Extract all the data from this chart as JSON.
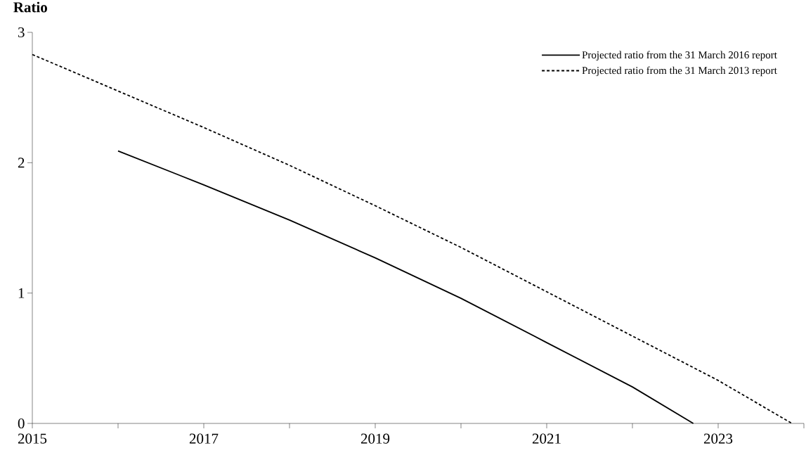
{
  "chart_data": {
    "type": "line",
    "ylabel": "Ratio",
    "xlim": [
      2015,
      2024
    ],
    "ylim": [
      0,
      3
    ],
    "yticks": [
      0,
      1,
      2,
      3
    ],
    "xticks": [
      2015,
      {
        "value": 2016,
        "label": null
      },
      2017,
      {
        "value": 2018,
        "label": null
      },
      2019,
      {
        "value": 2020,
        "label": null
      },
      2021,
      {
        "value": 2022,
        "label": null
      },
      2023,
      {
        "value": 2024,
        "label": null
      }
    ],
    "legend": "top right",
    "series": [
      {
        "name": "Projected ratio from the 31 March 2016 report",
        "color": "#000000",
        "line_style": "solid",
        "x": [
          2016,
          2017,
          2018,
          2019,
          2020,
          2021,
          2022,
          2022.71
        ],
        "values": [
          2.09,
          1.83,
          1.56,
          1.27,
          0.96,
          0.62,
          0.28,
          0
        ]
      },
      {
        "name": "Projected ratio from the 31 March 2013 report",
        "color": "#000000",
        "line_style": "dashed",
        "x": [
          2015,
          2016,
          2017,
          2018,
          2019,
          2020,
          2021,
          2022,
          2023,
          2023.86
        ],
        "values": [
          2.83,
          2.55,
          2.27,
          1.98,
          1.67,
          1.35,
          1.01,
          0.67,
          0.33,
          0
        ]
      }
    ]
  }
}
